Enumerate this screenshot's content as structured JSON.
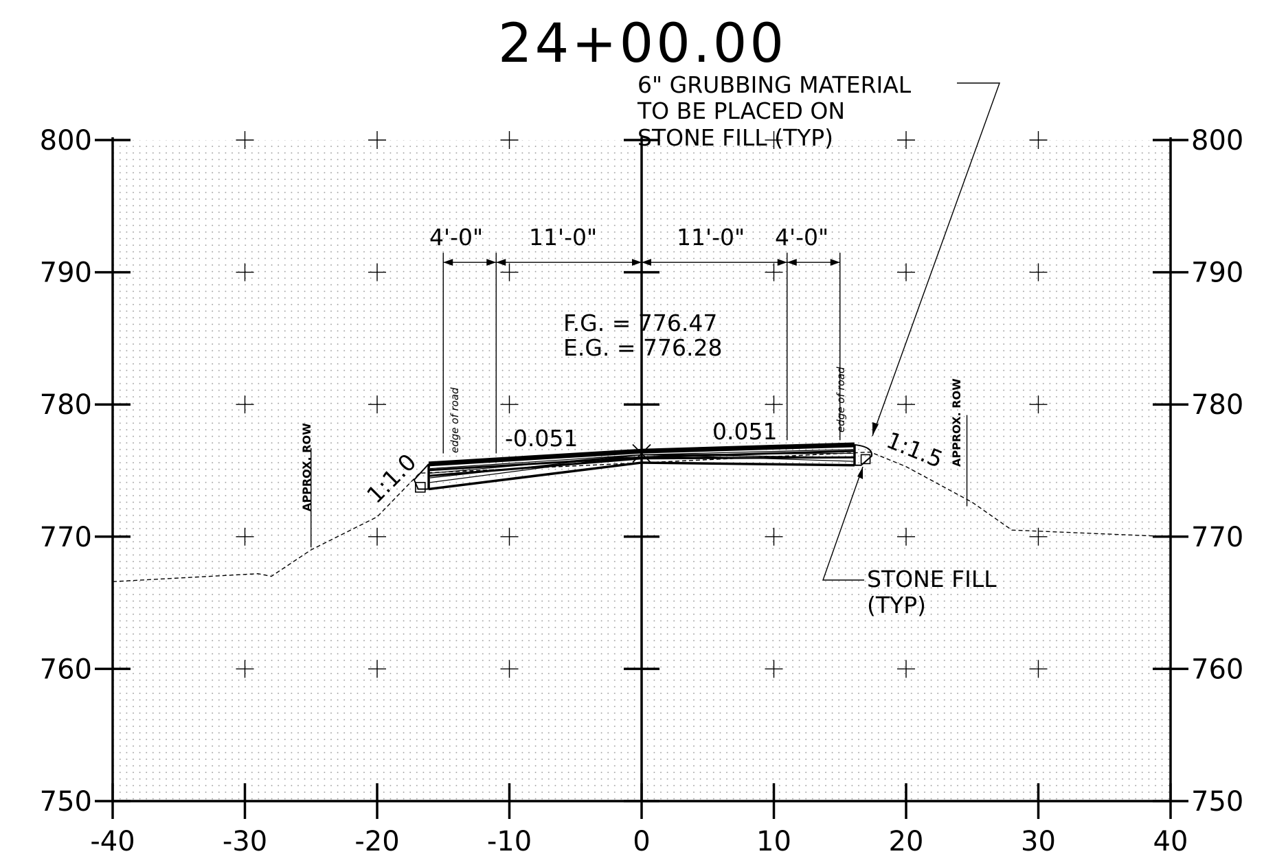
{
  "title": "24+00.00",
  "chart_data": {
    "type": "cross-section",
    "xlim": [
      -40,
      40
    ],
    "ylim": [
      750,
      800
    ],
    "x_ticks": [
      "-40",
      "-30",
      "-20",
      "-10",
      "0",
      "10",
      "20",
      "30",
      "40"
    ],
    "y_ticks": [
      "800",
      "790",
      "780",
      "770",
      "760",
      "750"
    ],
    "existing_ground": [
      [
        -40,
        766.6
      ],
      [
        -29,
        767.2
      ],
      [
        -28,
        767.0
      ],
      [
        -25,
        769.0
      ],
      [
        -20,
        771.5
      ],
      [
        -16.8,
        774.8
      ],
      [
        17.3,
        776.4
      ],
      [
        20,
        775.3
      ],
      [
        25,
        772.6
      ],
      [
        28,
        770.5
      ],
      [
        40,
        770.0
      ]
    ],
    "finished_grade": [
      [
        -16.1,
        775.5
      ],
      [
        0,
        776.47
      ],
      [
        16.1,
        776.95
      ]
    ],
    "subgrade": [
      [
        -16.1,
        773.6
      ],
      [
        0,
        775.6
      ],
      [
        16.1,
        775.4
      ]
    ],
    "dimensions": [
      "4'-0\"",
      "11'-0\"",
      "11'-0\"",
      "4'-0\""
    ],
    "fg_label": "F.G. = 776.47",
    "eg_label": "E.G. = 776.28",
    "cross_slopes": [
      "-0.051",
      "0.051"
    ],
    "side_slopes": [
      "1:1.0",
      "1:1.5"
    ],
    "row_labels": [
      "APPROX. ROW",
      "APPROX. ROW"
    ],
    "edge_labels": [
      "edge of road",
      "edge of road"
    ],
    "callouts": {
      "grubbing": [
        "6\" GRUBBING MATERIAL",
        "TO BE PLACED ON",
        "STONE FILL (TYP)"
      ],
      "stone": [
        "STONE FILL",
        "(TYP)"
      ]
    }
  }
}
